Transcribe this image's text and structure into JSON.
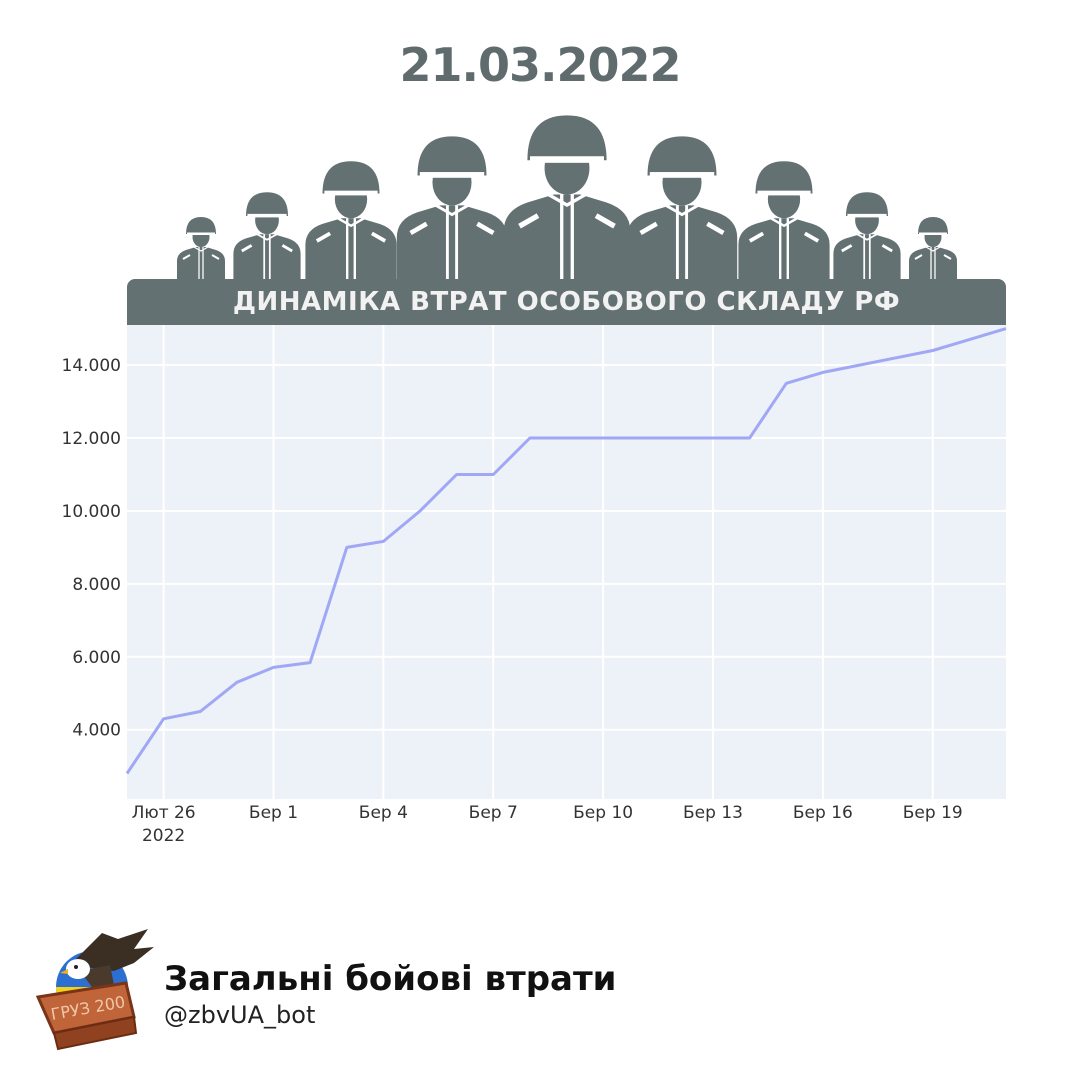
{
  "date_heading": "21.03.2022",
  "banner_title": "ДИНАМІКА ВТРАТ ОСОБОВОГО СКЛАДУ РФ",
  "colors": {
    "banner": "#647173",
    "line": "#a0a8f5",
    "plot_bg": "#edf1f8",
    "grid": "#ffffff",
    "heading": "#5f6b6d"
  },
  "icons": [
    "soldier-icon",
    "eagle-coffin-logo"
  ],
  "footer": {
    "title": "Загальні бойові втрати",
    "handle": "@zbvUA_bot",
    "logo_text": "ГРУЗ 200"
  },
  "chart_data": {
    "type": "line",
    "title": "ДИНАМІКА ВТРАТ ОСОБОВОГО СКЛАДУ РФ",
    "xlabel": "",
    "ylabel": "",
    "x_ticks": [
      {
        "day": 1,
        "label": "Лют 26",
        "sublabel": "2022"
      },
      {
        "day": 4,
        "label": "Бер 1"
      },
      {
        "day": 7,
        "label": "Бер 4"
      },
      {
        "day": 10,
        "label": "Бер 7"
      },
      {
        "day": 13,
        "label": "Бер 10"
      },
      {
        "day": 16,
        "label": "Бер 13"
      },
      {
        "day": 19,
        "label": "Бер 16"
      },
      {
        "day": 22,
        "label": "Бер 19"
      }
    ],
    "y_ticks": [
      {
        "value": 4000,
        "label": "4.000"
      },
      {
        "value": 6000,
        "label": "6.000"
      },
      {
        "value": 8000,
        "label": "8.000"
      },
      {
        "value": 10000,
        "label": "10.000"
      },
      {
        "value": 12000,
        "label": "12.000"
      },
      {
        "value": 14000,
        "label": "14.000"
      }
    ],
    "ylim": [
      2100,
      15100
    ],
    "xlim": [
      0,
      24
    ],
    "grid": true,
    "series": [
      {
        "x": [
          0,
          1,
          2,
          3,
          4,
          5,
          6,
          7,
          8,
          9,
          10,
          11,
          12,
          13,
          14,
          15,
          16,
          17,
          18,
          19,
          20,
          21,
          22,
          23,
          24
        ],
        "values": [
          2800,
          4300,
          4500,
          5300,
          5710,
          5840,
          9000,
          9166,
          10000,
          11000,
          11000,
          12000,
          12000,
          12000,
          12000,
          12000,
          12000,
          12000,
          13500,
          13800,
          14000,
          14200,
          14400,
          14700,
          15000
        ]
      }
    ]
  }
}
